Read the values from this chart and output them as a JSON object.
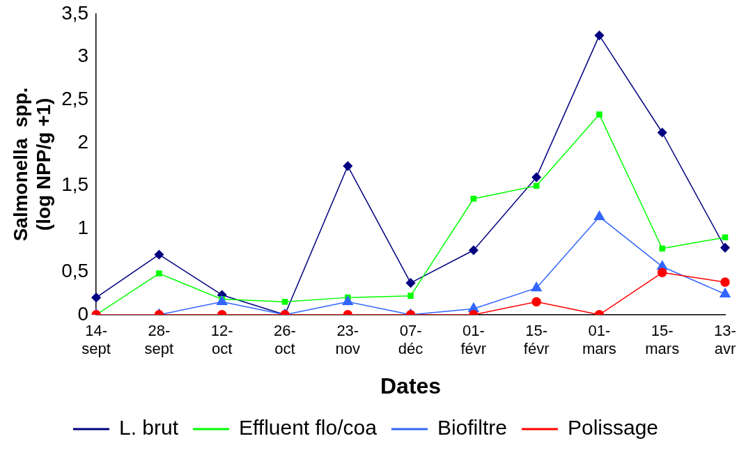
{
  "chart_data": {
    "type": "line",
    "xlabel": "Dates",
    "ylabel": "Salmonella  spp.\n(log NPP/g +1)",
    "categories": [
      "14-\nsept",
      "28-\nsept",
      "12-\noct",
      "26-\noct",
      "23-\nnov",
      "07-\ndéc",
      "01-\nfévr",
      "15-\nfévr",
      "01-\nmars",
      "15-\nmars",
      "13-\navr"
    ],
    "ylim": [
      0,
      3.5
    ],
    "yticks": [
      0,
      {
        "value": 0.5,
        "label": "0,5"
      },
      1,
      {
        "value": 1.5,
        "label": "1,5"
      },
      2,
      {
        "value": 2.5,
        "label": "2,5"
      },
      3,
      {
        "value": 3.5,
        "label": "3,5"
      }
    ],
    "grid": false,
    "legend": "bottom",
    "line_style": "solid",
    "series": [
      {
        "name": "L. brut",
        "color": "#000080",
        "marker": "diamond",
        "values": [
          0.2,
          0.7,
          0.23,
          0,
          1.73,
          0.37,
          0.75,
          1.6,
          3.25,
          2.12,
          0.78
        ]
      },
      {
        "name": "Effluent flo/coa",
        "color": "#00ff00",
        "marker": "square",
        "values": [
          0,
          0.48,
          0.18,
          0.15,
          0.2,
          0.22,
          1.35,
          1.5,
          2.33,
          0.77,
          0.9
        ]
      },
      {
        "name": "Biofiltre",
        "color": "#3366ff",
        "marker": "triangle",
        "values": [
          0,
          0,
          0.15,
          0,
          0.15,
          0,
          0.07,
          0.31,
          1.14,
          0.56,
          0.24
        ]
      },
      {
        "name": "Polissage",
        "color": "#ff0000",
        "marker": "circle",
        "values": [
          0,
          0,
          0,
          0,
          0,
          0,
          0,
          0.15,
          0,
          0.49,
          0.38
        ]
      }
    ]
  }
}
